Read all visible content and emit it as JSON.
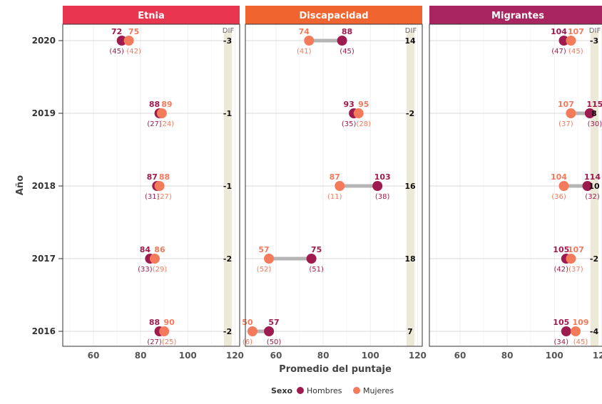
{
  "chart_data": {
    "type": "dumbbell",
    "xlabel": "Promedio del puntaje",
    "ylabel": "Año",
    "xlim": [
      47,
      122
    ],
    "x_ticks": [
      60,
      80,
      100,
      120
    ],
    "years": [
      "2020",
      "2019",
      "2018",
      "2017",
      "2016"
    ],
    "dif_header": "DIF",
    "legend": {
      "title": "Sexo",
      "position": "bottom",
      "items": [
        {
          "name": "Hombres",
          "color": "#9e1b4f"
        },
        {
          "name": "Mujeres",
          "color": "#f47a5c"
        }
      ]
    },
    "colors": {
      "hombres": "#9e1b4f",
      "mujeres": "#f47a5c",
      "connector": "#b5b5b5",
      "dif_band": "#ece9d8"
    },
    "panels": [
      {
        "title": "Etnia",
        "strip_color": "#e8364f",
        "rows": [
          {
            "year": "2020",
            "hombres": 72,
            "mujeres": 75,
            "n_hombres": "(45)",
            "n_mujeres": "(42)",
            "dif": "-3"
          },
          {
            "year": "2019",
            "hombres": 88,
            "mujeres": 89,
            "n_hombres": "(27)",
            "n_mujeres": "(24)",
            "dif": "-1"
          },
          {
            "year": "2018",
            "hombres": 87,
            "mujeres": 88,
            "n_hombres": "(31)",
            "n_mujeres": "(27)",
            "dif": "-1"
          },
          {
            "year": "2017",
            "hombres": 84,
            "mujeres": 86,
            "n_hombres": "(33)",
            "n_mujeres": "(29)",
            "dif": "-2"
          },
          {
            "year": "2016",
            "hombres": 88,
            "mujeres": 90,
            "n_hombres": "(27)",
            "n_mujeres": "(25)",
            "dif": "-2"
          }
        ]
      },
      {
        "title": "Discapacidad",
        "strip_color": "#f0642f",
        "rows": [
          {
            "year": "2020",
            "hombres": 88,
            "mujeres": 74,
            "n_hombres": "(45)",
            "n_mujeres": "(41)",
            "dif": "14"
          },
          {
            "year": "2019",
            "hombres": 93,
            "mujeres": 95,
            "n_hombres": "(35)",
            "n_mujeres": "(28)",
            "dif": "-2"
          },
          {
            "year": "2018",
            "hombres": 103,
            "mujeres": 87,
            "n_hombres": "(38)",
            "n_mujeres": "(11)",
            "dif": "16"
          },
          {
            "year": "2017",
            "hombres": 75,
            "mujeres": 57,
            "n_hombres": "(51)",
            "n_mujeres": "(52)",
            "dif": "18"
          },
          {
            "year": "2016",
            "hombres": 57,
            "mujeres": 50,
            "n_hombres": "(50)",
            "n_mujeres": "(6)",
            "dif": "7"
          }
        ]
      },
      {
        "title": "Migrantes",
        "strip_color": "#a8255f",
        "rows": [
          {
            "year": "2020",
            "hombres": 104,
            "mujeres": 107,
            "n_hombres": "(47)",
            "n_mujeres": "(45)",
            "dif": "-3"
          },
          {
            "year": "2019",
            "hombres": 115,
            "mujeres": 107,
            "n_hombres": "(30)",
            "n_mujeres": "(37)",
            "dif": "8"
          },
          {
            "year": "2018",
            "hombres": 114,
            "mujeres": 104,
            "n_hombres": "(32)",
            "n_mujeres": "(36)",
            "dif": "10"
          },
          {
            "year": "2017",
            "hombres": 105,
            "mujeres": 107,
            "n_hombres": "(42)",
            "n_mujeres": "(37)",
            "dif": "-2"
          },
          {
            "year": "2016",
            "hombres": 105,
            "mujeres": 109,
            "n_hombres": "(34)",
            "n_mujeres": "(45)",
            "dif": "-4"
          }
        ]
      }
    ]
  }
}
